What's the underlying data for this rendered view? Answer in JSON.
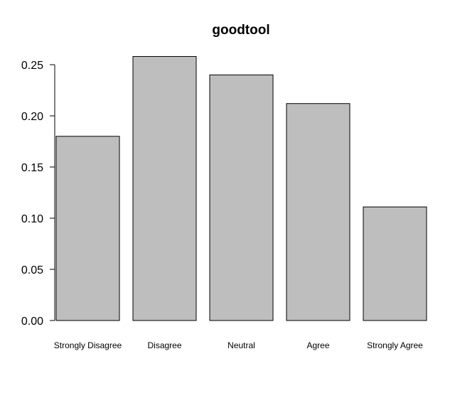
{
  "chart_data": {
    "type": "bar",
    "title": "goodtool",
    "xlabel": "",
    "ylabel": "",
    "categories": [
      "Strongly Disagree",
      "Disagree",
      "Neutral",
      "Agree",
      "Strongly Agree"
    ],
    "values": [
      0.18,
      0.258,
      0.24,
      0.212,
      0.111
    ],
    "ylim": [
      0,
      0.25
    ],
    "yticks": [
      "0.00",
      "0.05",
      "0.10",
      "0.15",
      "0.20",
      "0.25"
    ],
    "grid": false,
    "bar_color": "#bebebe"
  }
}
